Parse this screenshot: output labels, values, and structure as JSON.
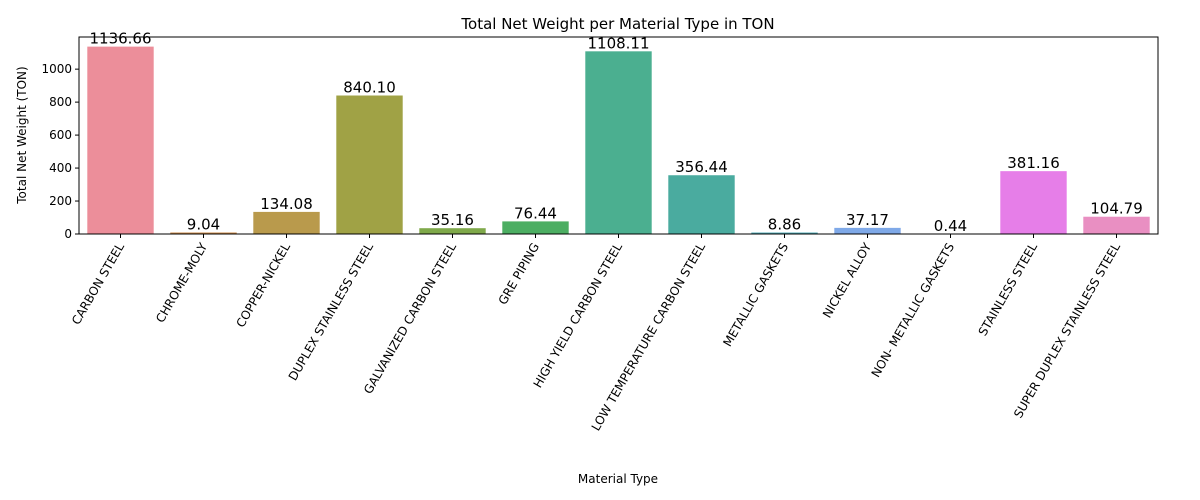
{
  "chart_data": {
    "type": "bar",
    "title": "Total Net Weight per Material Type in TON",
    "xlabel": "Material Type",
    "ylabel": "Total Net Weight (TON)",
    "ylim": [
      0,
      1195
    ],
    "yticks": [
      0,
      200,
      400,
      600,
      800,
      1000
    ],
    "grid": false,
    "categories": [
      "CARBON STEEL",
      "CHROME-MOLY",
      "COPPER-NICKEL",
      "DUPLEX STAINLESS STEEL",
      "GALVANIZED CARBON STEEL",
      "GRE PIPING",
      "HIGH YIELD CARBON STEEL",
      "LOW TEMPERATURE CARBON STEEL",
      "METALLIC GASKETS",
      "NICKEL ALLOY",
      "NON- METALLIC GASKETS",
      "STAINLESS STEEL",
      "SUPER DUPLEX STAINLESS STEEL"
    ],
    "values": [
      1136.66,
      9.04,
      134.08,
      840.1,
      35.16,
      76.44,
      1108.11,
      356.44,
      8.86,
      37.17,
      0.44,
      381.16,
      104.79
    ],
    "data_labels": [
      "1136.66",
      "9.04",
      "134.08",
      "840.10",
      "35.16",
      "76.44",
      "1108.11",
      "356.44",
      "8.86",
      "37.17",
      "0.44",
      "381.16",
      "104.79"
    ],
    "colors": [
      "#ec8e9a",
      "#cc8a48",
      "#b99a4c",
      "#a0a245",
      "#7fa94a",
      "#4cae62",
      "#4baf90",
      "#4aab9f",
      "#4ca9b4",
      "#7fa9e8",
      "#b39be8",
      "#e67ee8",
      "#e98fc2"
    ]
  }
}
